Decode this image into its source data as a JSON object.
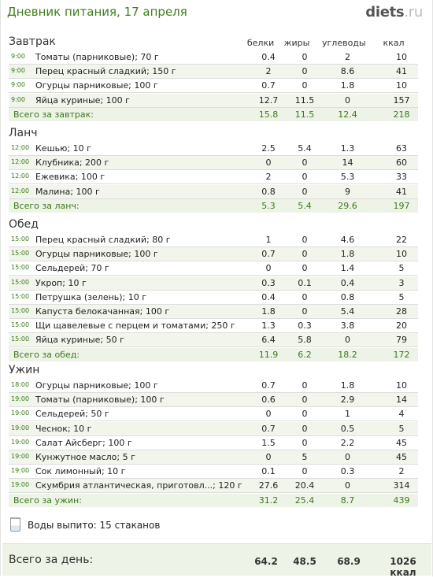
{
  "title": "Дневник питания, 17 апреля",
  "logo": {
    "main": "diets",
    "suffix": ".ru"
  },
  "columns": [
    "белки",
    "жиры",
    "углеводы",
    "ккал"
  ],
  "sections": [
    {
      "name": "Завтрак",
      "items": [
        {
          "time": "9:00",
          "name": "Томаты (парниковые); 70 г",
          "protein": "0.4",
          "fat": "0",
          "carbs": "2",
          "kcal": "10"
        },
        {
          "time": "9:00",
          "name": "Перец красный сладкий; 150 г",
          "protein": "2",
          "fat": "0",
          "carbs": "8.6",
          "kcal": "41"
        },
        {
          "time": "9:00",
          "name": "Огурцы парниковые; 100 г",
          "protein": "0.7",
          "fat": "0",
          "carbs": "1.8",
          "kcal": "10"
        },
        {
          "time": "9:00",
          "name": "Яйца куриные; 100 г",
          "protein": "12.7",
          "fat": "11.5",
          "carbs": "0",
          "kcal": "157"
        }
      ],
      "total": {
        "label": "Всего за завтрак:",
        "protein": "15.8",
        "fat": "11.5",
        "carbs": "12.4",
        "kcal": "218"
      }
    },
    {
      "name": "Ланч",
      "items": [
        {
          "time": "12:00",
          "name": "Кешью; 10 г",
          "protein": "2.5",
          "fat": "5.4",
          "carbs": "1.3",
          "kcal": "63"
        },
        {
          "time": "12:00",
          "name": "Клубника; 200 г",
          "protein": "0",
          "fat": "0",
          "carbs": "14",
          "kcal": "60"
        },
        {
          "time": "12:00",
          "name": "Ежевика; 100 г",
          "protein": "2",
          "fat": "0",
          "carbs": "5.3",
          "kcal": "33"
        },
        {
          "time": "12:00",
          "name": "Малина; 100 г",
          "protein": "0.8",
          "fat": "0",
          "carbs": "9",
          "kcal": "41"
        }
      ],
      "total": {
        "label": "Всего за ланч:",
        "protein": "5.3",
        "fat": "5.4",
        "carbs": "29.6",
        "kcal": "197"
      }
    },
    {
      "name": "Обед",
      "items": [
        {
          "time": "15:00",
          "name": "Перец красный сладкий; 80 г",
          "protein": "1",
          "fat": "0",
          "carbs": "4.6",
          "kcal": "22"
        },
        {
          "time": "15:00",
          "name": "Огурцы парниковые; 100 г",
          "protein": "0.7",
          "fat": "0",
          "carbs": "1.8",
          "kcal": "10"
        },
        {
          "time": "15:00",
          "name": "Сельдерей; 70 г",
          "protein": "0",
          "fat": "0",
          "carbs": "1.4",
          "kcal": "5"
        },
        {
          "time": "15:00",
          "name": "Укроп; 10 г",
          "protein": "0.3",
          "fat": "0.1",
          "carbs": "0.4",
          "kcal": "3"
        },
        {
          "time": "15:00",
          "name": "Петрушка (зелень); 10 г",
          "protein": "0.4",
          "fat": "0",
          "carbs": "0.8",
          "kcal": "5"
        },
        {
          "time": "15:00",
          "name": "Капуста белокачанная; 100 г",
          "protein": "1.8",
          "fat": "0",
          "carbs": "5.4",
          "kcal": "28"
        },
        {
          "time": "15:00",
          "name": "Щи щавелевые с перцем и томатами; 250 г",
          "protein": "1.3",
          "fat": "0.3",
          "carbs": "3.8",
          "kcal": "20"
        },
        {
          "time": "15:00",
          "name": "Яйца куриные; 50 г",
          "protein": "6.4",
          "fat": "5.8",
          "carbs": "0",
          "kcal": "79"
        }
      ],
      "total": {
        "label": "Всего за обед:",
        "protein": "11.9",
        "fat": "6.2",
        "carbs": "18.2",
        "kcal": "172"
      }
    },
    {
      "name": "Ужин",
      "items": [
        {
          "time": "18:00",
          "name": "Огурцы парниковые; 100 г",
          "protein": "0.7",
          "fat": "0",
          "carbs": "1.8",
          "kcal": "10"
        },
        {
          "time": "19:00",
          "name": "Томаты (парниковые); 100 г",
          "protein": "0.6",
          "fat": "0",
          "carbs": "2.9",
          "kcal": "14"
        },
        {
          "time": "19:00",
          "name": "Сельдерей; 50 г",
          "protein": "0",
          "fat": "0",
          "carbs": "1",
          "kcal": "4"
        },
        {
          "time": "19:00",
          "name": "Чеснок; 10 г",
          "protein": "0.7",
          "fat": "0",
          "carbs": "0.5",
          "kcal": "5"
        },
        {
          "time": "19:00",
          "name": "Салат Айсберг; 100 г",
          "protein": "1.5",
          "fat": "0",
          "carbs": "2.2",
          "kcal": "45"
        },
        {
          "time": "19:00",
          "name": "Кунжутное масло; 5 г",
          "protein": "0",
          "fat": "5",
          "carbs": "0",
          "kcal": "45"
        },
        {
          "time": "19:00",
          "name": "Сок лимонный; 10 г",
          "protein": "0.1",
          "fat": "0",
          "carbs": "0.3",
          "kcal": "2"
        },
        {
          "time": "19:00",
          "name": "Скумбрия атлантическая, приготовл...; 120 г",
          "protein": "27.6",
          "fat": "20.4",
          "carbs": "0",
          "kcal": "314"
        }
      ],
      "total": {
        "label": "Всего за ужин:",
        "protein": "31.2",
        "fat": "25.4",
        "carbs": "8.7",
        "kcal": "439"
      }
    }
  ],
  "water": {
    "icon": "glass-icon",
    "text": "Воды выпито: 15 стаканов"
  },
  "day_total": {
    "label": "Всего за день:",
    "protein": "64.2",
    "fat": "48.5",
    "carbs": "68.9",
    "kcal": "1026 ккал"
  }
}
